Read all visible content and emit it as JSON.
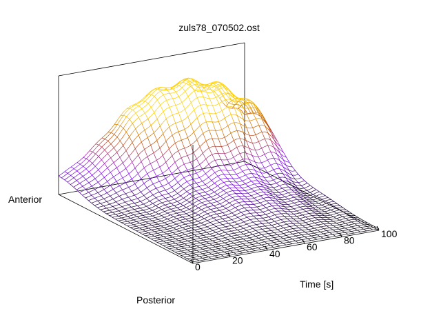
{
  "chart_data": {
    "type": "surface",
    "title": "zuls78_070502.ost",
    "xlabel": "Time [s]",
    "ylabel_near": "Posterior",
    "ylabel_far": "Anterior",
    "xlim": [
      0,
      100
    ],
    "x_ticks": [
      "0",
      "20",
      "40",
      "60",
      "80",
      "100"
    ],
    "grid": false,
    "colormap": [
      "#000000",
      "#8000ff",
      "#c05000",
      "#ffd000"
    ]
  }
}
